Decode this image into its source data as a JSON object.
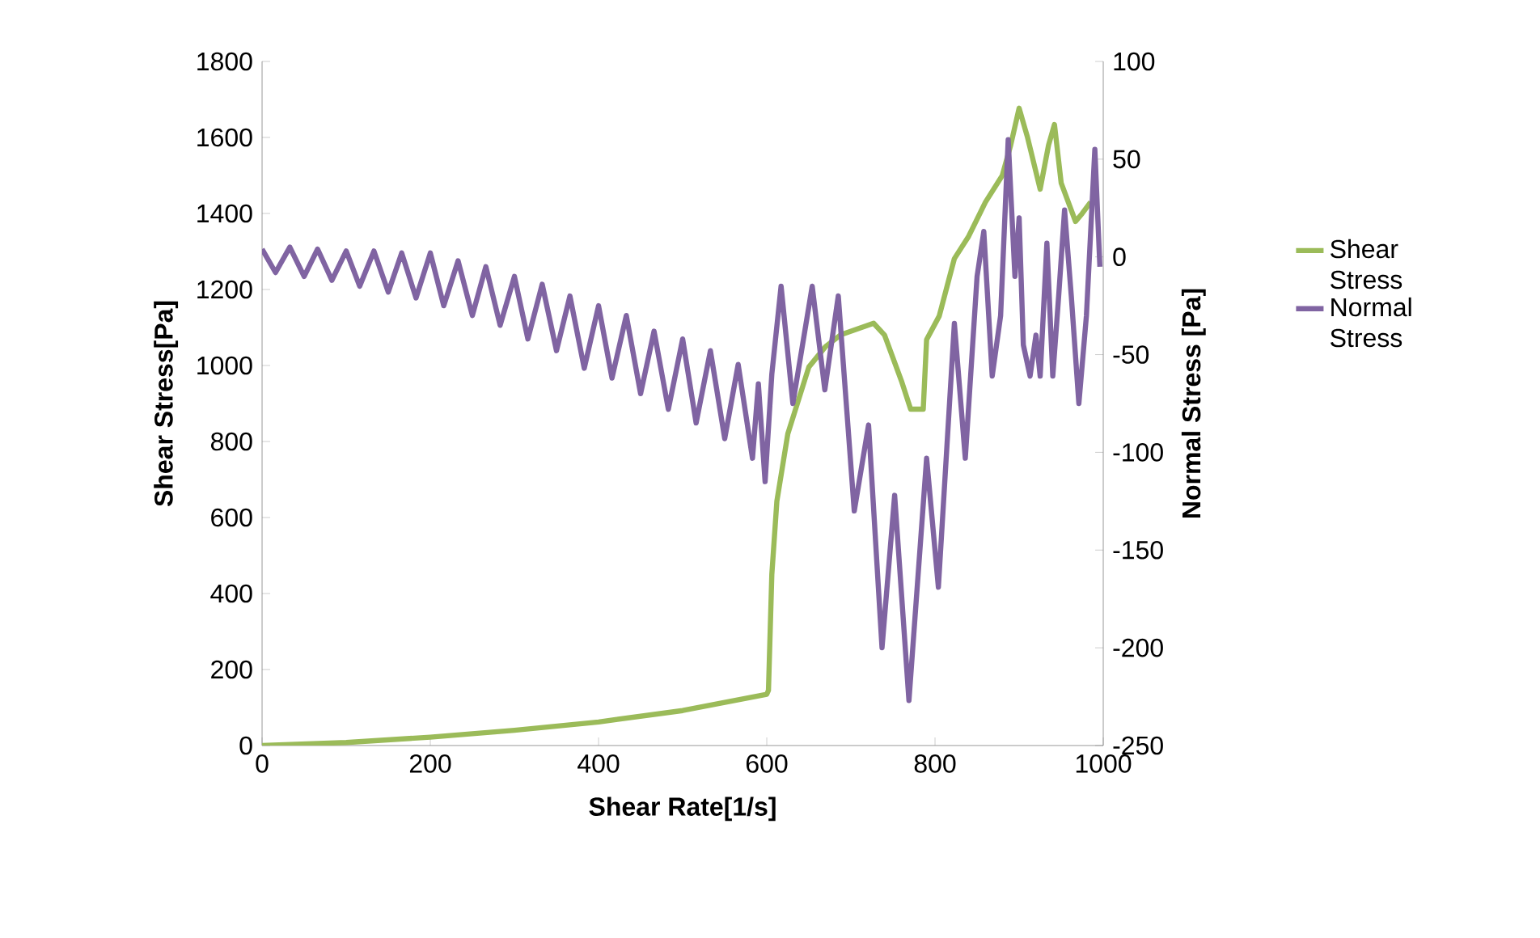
{
  "chart_data": {
    "type": "line",
    "xlabel": "Shear Rate[1/s]",
    "ylabel": "Shear Stress[Pa]",
    "y2label": "Normal Stress [Pa]",
    "xlim": [
      0,
      1000
    ],
    "xticks": [
      0,
      200,
      400,
      600,
      800,
      1000
    ],
    "ylim": [
      0,
      1800
    ],
    "yticks": [
      0,
      200,
      400,
      600,
      800,
      1000,
      1200,
      1400,
      1600,
      1800
    ],
    "y2lim": [
      -250,
      100
    ],
    "y2ticks": [
      -250,
      -200,
      -150,
      -100,
      -50,
      0,
      50,
      100
    ],
    "legend": "right",
    "series": [
      {
        "name": "Shear Stress",
        "color": "#9bbb59",
        "x": [
          0,
          100,
          200,
          300,
          400,
          500,
          600,
          602,
          606,
          612,
          625,
          650,
          670,
          688,
          727,
          740,
          760,
          771,
          786,
          790,
          805,
          823,
          840,
          860,
          880,
          890,
          900,
          910,
          925,
          935,
          942,
          950,
          967,
          975,
          985
        ],
        "values": [
          0,
          8,
          22,
          40,
          62,
          92,
          135,
          145,
          450,
          643,
          820,
          996,
          1050,
          1081,
          1111,
          1080,
          960,
          885,
          885,
          1068,
          1130,
          1281,
          1340,
          1430,
          1500,
          1580,
          1677,
          1600,
          1464,
          1580,
          1634,
          1480,
          1379,
          1400,
          1430
        ]
      },
      {
        "name": "Normal Stress",
        "color": "#8064a2",
        "axis": "y2",
        "x": [
          0,
          16,
          33,
          50,
          66,
          83,
          100,
          116,
          133,
          150,
          166,
          183,
          200,
          216,
          233,
          250,
          266,
          283,
          300,
          316,
          333,
          350,
          366,
          383,
          400,
          416,
          433,
          450,
          466,
          483,
          500,
          516,
          533,
          550,
          566,
          583,
          590,
          598,
          606,
          617,
          631,
          654,
          669,
          685,
          704,
          721,
          737,
          752,
          769,
          790,
          804,
          823,
          836,
          850,
          858,
          868,
          878,
          887,
          895,
          900,
          905,
          913,
          920,
          925,
          933,
          940,
          947,
          954,
          962,
          971,
          980,
          990,
          996
        ],
        "values": [
          4,
          -8,
          5,
          -10,
          4,
          -12,
          3,
          -15,
          3,
          -18,
          2,
          -21,
          2,
          -25,
          -2,
          -30,
          -5,
          -35,
          -10,
          -42,
          -14,
          -48,
          -20,
          -57,
          -25,
          -62,
          -30,
          -70,
          -38,
          -78,
          -42,
          -85,
          -48,
          -93,
          -55,
          -103,
          -65,
          -115,
          -60,
          -15,
          -75,
          -15,
          -68,
          -20,
          -130,
          -86,
          -200,
          -122,
          -227,
          -103,
          -169,
          -34,
          -103,
          -10,
          13,
          -61,
          -30,
          60,
          -10,
          20,
          -45,
          -61,
          -40,
          -61,
          7,
          -61,
          -20,
          24,
          -20,
          -75,
          -30,
          55,
          -5
        ]
      }
    ]
  }
}
